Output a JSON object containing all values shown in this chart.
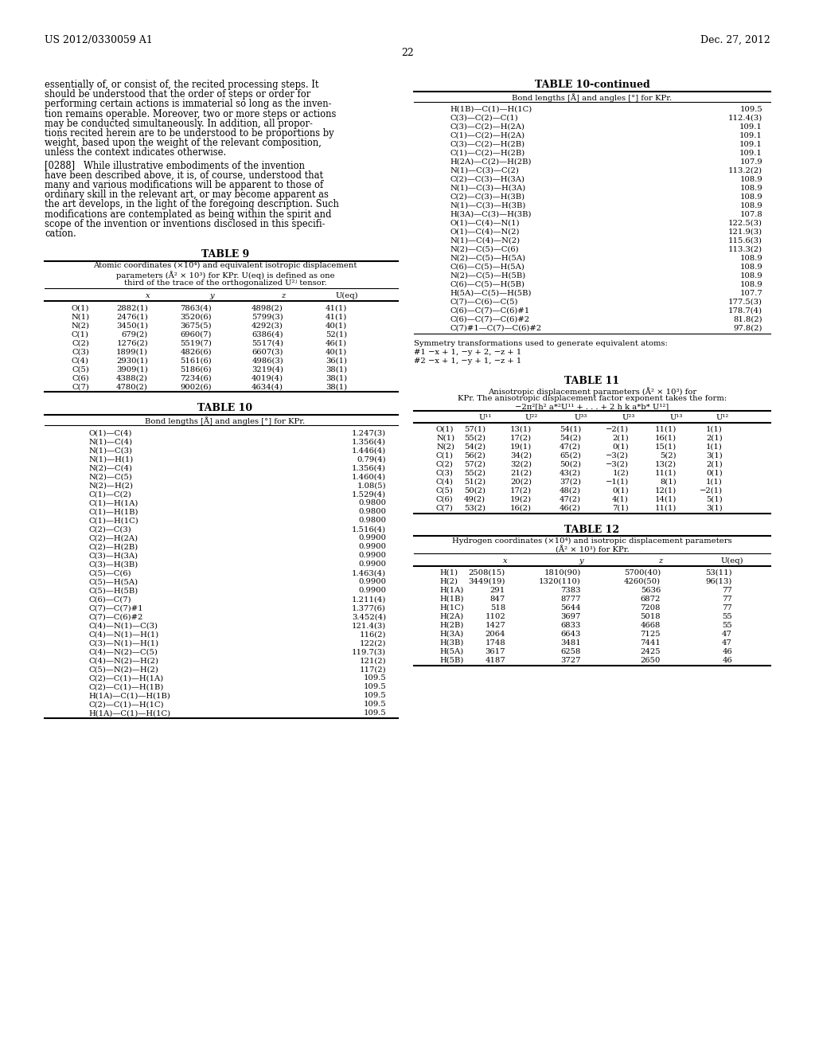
{
  "page_header_left": "US 2012/0330059 A1",
  "page_header_right": "Dec. 27, 2012",
  "page_number": "22",
  "body_text": [
    "essentially of, or consist of, the recited processing steps. It",
    "should be understood that the order of steps or order for",
    "performing certain actions is immaterial so long as the inven-",
    "tion remains operable. Moreover, two or more steps or actions",
    "may be conducted simultaneously. In addition, all propor-",
    "tions recited herein are to be understood to be proportions by",
    "weight, based upon the weight of the relevant composition,",
    "unless the context indicates otherwise."
  ],
  "p288_lines": [
    "[0288]   While illustrative embodiments of the invention",
    "have been described above, it is, of course, understood that",
    "many and various modifications will be apparent to those of",
    "ordinary skill in the relevant art, or may become apparent as",
    "the art develops, in the light of the foregoing description. Such",
    "modifications are contemplated as being within the spirit and",
    "scope of the invention or inventions disclosed in this specifi-",
    "cation."
  ],
  "table9_title": "TABLE 9",
  "table9_cap1": "Atomic coordinates (×10⁴) and equivalent isotropic displacement",
  "table9_cap2": "parameters (Å² × 10³) for KPr. U(eq) is defined as one",
  "table9_cap3": "third of the trace of the orthogonalized U²ʲ tensor.",
  "table9_headers": [
    "",
    "x",
    "y",
    "z",
    "U(eq)"
  ],
  "table9_data": [
    [
      "O(1)",
      "2882(1)",
      "7863(4)",
      "4898(2)",
      "41(1)"
    ],
    [
      "N(1)",
      "2476(1)",
      "3520(6)",
      "5799(3)",
      "41(1)"
    ],
    [
      "N(2)",
      "3450(1)",
      "3675(5)",
      "4292(3)",
      "40(1)"
    ],
    [
      "C(1)",
      "679(2)",
      "6960(7)",
      "6386(4)",
      "52(1)"
    ],
    [
      "C(2)",
      "1276(2)",
      "5519(7)",
      "5517(4)",
      "46(1)"
    ],
    [
      "C(3)",
      "1899(1)",
      "4826(6)",
      "6607(3)",
      "40(1)"
    ],
    [
      "C(4)",
      "2930(1)",
      "5161(6)",
      "4986(3)",
      "36(1)"
    ],
    [
      "C(5)",
      "3909(1)",
      "5186(6)",
      "3219(4)",
      "38(1)"
    ],
    [
      "C(6)",
      "4388(2)",
      "7234(6)",
      "4019(4)",
      "38(1)"
    ],
    [
      "C(7)",
      "4780(2)",
      "9002(6)",
      "4634(4)",
      "38(1)"
    ]
  ],
  "table10_title": "TABLE 10",
  "table10_caption": "Bond lengths [Å] and angles [°] for KPr.",
  "table10_data": [
    [
      "O(1)—C(4)",
      "1.247(3)"
    ],
    [
      "N(1)—C(4)",
      "1.356(4)"
    ],
    [
      "N(1)—C(3)",
      "1.446(4)"
    ],
    [
      "N(1)—H(1)",
      "0.79(4)"
    ],
    [
      "N(2)—C(4)",
      "1.356(4)"
    ],
    [
      "N(2)—C(5)",
      "1.460(4)"
    ],
    [
      "N(2)—H(2)",
      "1.08(5)"
    ],
    [
      "C(1)—C(2)",
      "1.529(4)"
    ],
    [
      "C(1)—H(1A)",
      "0.9800"
    ],
    [
      "C(1)—H(1B)",
      "0.9800"
    ],
    [
      "C(1)—H(1C)",
      "0.9800"
    ],
    [
      "C(2)—C(3)",
      "1.516(4)"
    ],
    [
      "C(2)—H(2A)",
      "0.9900"
    ],
    [
      "C(2)—H(2B)",
      "0.9900"
    ],
    [
      "C(3)—H(3A)",
      "0.9900"
    ],
    [
      "C(3)—H(3B)",
      "0.9900"
    ],
    [
      "C(5)—C(6)",
      "1.463(4)"
    ],
    [
      "C(5)—H(5A)",
      "0.9900"
    ],
    [
      "C(5)—H(5B)",
      "0.9900"
    ],
    [
      "C(6)—C(7)",
      "1.211(4)"
    ],
    [
      "C(7)—C(7)#1",
      "1.377(6)"
    ],
    [
      "C(7)—C(6)#2",
      "3.452(4)"
    ],
    [
      "C(4)—N(1)—C(3)",
      "121.4(3)"
    ],
    [
      "C(4)—N(1)—H(1)",
      "116(2)"
    ],
    [
      "C(3)—N(1)—H(1)",
      "122(2)"
    ],
    [
      "C(4)—N(2)—C(5)",
      "119.7(3)"
    ],
    [
      "C(4)—N(2)—H(2)",
      "121(2)"
    ],
    [
      "C(5)—N(2)—H(2)",
      "117(2)"
    ],
    [
      "C(2)—C(1)—H(1A)",
      "109.5"
    ],
    [
      "C(2)—C(1)—H(1B)",
      "109.5"
    ],
    [
      "H(1A)—C(1)—H(1B)",
      "109.5"
    ],
    [
      "C(2)—C(1)—H(1C)",
      "109.5"
    ],
    [
      "H(1A)—C(1)—H(1C)",
      "109.5"
    ]
  ],
  "table10cont_title": "TABLE 10-continued",
  "table10cont_caption": "Bond lengths [Å] and angles [°] for KPr.",
  "table10cont_data": [
    [
      "H(1B)—C(1)—H(1C)",
      "109.5"
    ],
    [
      "C(3)—C(2)—C(1)",
      "112.4(3)"
    ],
    [
      "C(3)—C(2)—H(2A)",
      "109.1"
    ],
    [
      "C(1)—C(2)—H(2A)",
      "109.1"
    ],
    [
      "C(3)—C(2)—H(2B)",
      "109.1"
    ],
    [
      "C(1)—C(2)—H(2B)",
      "109.1"
    ],
    [
      "H(2A)—C(2)—H(2B)",
      "107.9"
    ],
    [
      "N(1)—C(3)—C(2)",
      "113.2(2)"
    ],
    [
      "C(2)—C(3)—H(3A)",
      "108.9"
    ],
    [
      "N(1)—C(3)—H(3A)",
      "108.9"
    ],
    [
      "C(2)—C(3)—H(3B)",
      "108.9"
    ],
    [
      "N(1)—C(3)—H(3B)",
      "108.9"
    ],
    [
      "H(3A)—C(3)—H(3B)",
      "107.8"
    ],
    [
      "O(1)—C(4)—N(1)",
      "122.5(3)"
    ],
    [
      "O(1)—C(4)—N(2)",
      "121.9(3)"
    ],
    [
      "N(1)—C(4)—N(2)",
      "115.6(3)"
    ],
    [
      "N(2)—C(5)—C(6)",
      "113.3(2)"
    ],
    [
      "N(2)—C(5)—H(5A)",
      "108.9"
    ],
    [
      "C(6)—C(5)—H(5A)",
      "108.9"
    ],
    [
      "N(2)—C(5)—H(5B)",
      "108.9"
    ],
    [
      "C(6)—C(5)—H(5B)",
      "108.9"
    ],
    [
      "H(5A)—C(5)—H(5B)",
      "107.7"
    ],
    [
      "C(7)—C(6)—C(5)",
      "177.5(3)"
    ],
    [
      "C(6)—C(7)—C(6)#1",
      "178.7(4)"
    ],
    [
      "C(6)—C(7)—C(6)#2",
      "81.8(2)"
    ],
    [
      "C(7)#1—C(7)—C(6)#2",
      "97.8(2)"
    ]
  ],
  "sym_text": [
    "Symmetry transformations used to generate equivalent atoms:",
    "#1 −x + 1, −y + 2, −z + 1",
    "#2 −x + 1, −y + 1, −z + 1"
  ],
  "table11_title": "TABLE 11",
  "table11_cap1": "Anisotropic displacement parameters (Å² × 10³) for",
  "table11_cap2": "KPr. The anisotropic displacement factor exponent takes the form:",
  "table11_cap3": "−2π²[h² a*²U¹¹ + . . . + 2 h k a*b* U¹²]",
  "table11_headers": [
    "",
    "U¹¹",
    "U²²",
    "U³³",
    "U²³",
    "U¹³",
    "U¹²"
  ],
  "table11_data": [
    [
      "O(1)",
      "57(1)",
      "13(1)",
      "54(1)",
      "−2(1)",
      "11(1)",
      "1(1)"
    ],
    [
      "N(1)",
      "55(2)",
      "17(2)",
      "54(2)",
      "2(1)",
      "16(1)",
      "2(1)"
    ],
    [
      "N(2)",
      "54(2)",
      "19(1)",
      "47(2)",
      "0(1)",
      "15(1)",
      "1(1)"
    ],
    [
      "C(1)",
      "56(2)",
      "34(2)",
      "65(2)",
      "−3(2)",
      "5(2)",
      "3(1)"
    ],
    [
      "C(2)",
      "57(2)",
      "32(2)",
      "50(2)",
      "−3(2)",
      "13(2)",
      "2(1)"
    ],
    [
      "C(3)",
      "55(2)",
      "21(2)",
      "43(2)",
      "1(2)",
      "11(1)",
      "0(1)"
    ],
    [
      "C(4)",
      "51(2)",
      "20(2)",
      "37(2)",
      "−1(1)",
      "8(1)",
      "1(1)"
    ],
    [
      "C(5)",
      "50(2)",
      "17(2)",
      "48(2)",
      "0(1)",
      "12(1)",
      "−2(1)"
    ],
    [
      "C(6)",
      "49(2)",
      "19(2)",
      "47(2)",
      "4(1)",
      "14(1)",
      "5(1)"
    ],
    [
      "C(7)",
      "53(2)",
      "16(2)",
      "46(2)",
      "7(1)",
      "11(1)",
      "3(1)"
    ]
  ],
  "table12_title": "TABLE 12",
  "table12_cap1": "Hydrogen coordinates (×10⁴) and isotropic displacement parameters",
  "table12_cap2": "(Å² × 10³) for KPr.",
  "table12_headers": [
    "",
    "x",
    "y",
    "z",
    "U(eq)"
  ],
  "table12_data": [
    [
      "H(1)",
      "2508(15)",
      "1810(90)",
      "5700(40)",
      "53(11)"
    ],
    [
      "H(2)",
      "3449(19)",
      "1320(110)",
      "4260(50)",
      "96(13)"
    ],
    [
      "H(1A)",
      "291",
      "7383",
      "5636",
      "77"
    ],
    [
      "H(1B)",
      "847",
      "8777",
      "6872",
      "77"
    ],
    [
      "H(1C)",
      "518",
      "5644",
      "7208",
      "77"
    ],
    [
      "H(2A)",
      "1102",
      "3697",
      "5018",
      "55"
    ],
    [
      "H(2B)",
      "1427",
      "6833",
      "4668",
      "55"
    ],
    [
      "H(3A)",
      "2064",
      "6643",
      "7125",
      "47"
    ],
    [
      "H(3B)",
      "1748",
      "3481",
      "7441",
      "47"
    ],
    [
      "H(5A)",
      "3617",
      "6258",
      "2425",
      "46"
    ],
    [
      "H(5B)",
      "4187",
      "3727",
      "2650",
      "46"
    ]
  ]
}
